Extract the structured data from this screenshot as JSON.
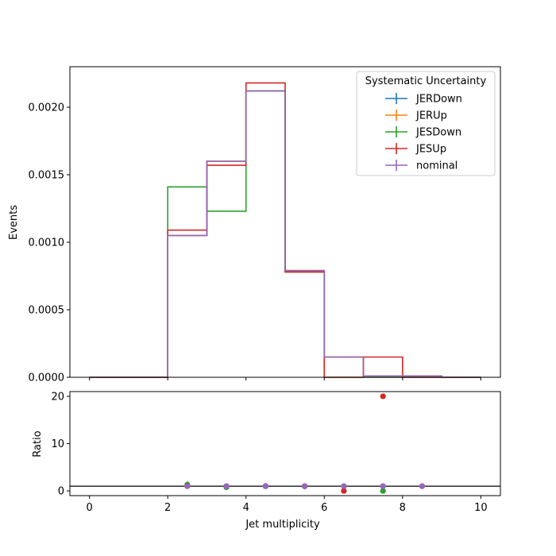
{
  "chart_data": [
    {
      "type": "line",
      "step": true,
      "panel": "main",
      "ylabel": "Events",
      "bin_edges": [
        0,
        1,
        2,
        3,
        4,
        5,
        6,
        7,
        8,
        9,
        10
      ],
      "xlim": [
        -0.5,
        10.5
      ],
      "ylim": [
        0,
        0.0023
      ],
      "yticks": [
        0,
        0.0005,
        0.001,
        0.0015,
        0.002
      ],
      "ytick_labels": [
        "0.0000",
        "0.0005",
        "0.0010",
        "0.0015",
        "0.0020"
      ],
      "legend": {
        "title": "Systematic Uncertainty",
        "placement": "top-right"
      },
      "series": [
        {
          "name": "JERDown",
          "color": "#1f77b4",
          "values": [
            0,
            0,
            0.00105,
            0.0016,
            0.00212,
            0.00079,
            0.00015,
            1e-05,
            1e-05,
            0
          ]
        },
        {
          "name": "JERUp",
          "color": "#ff7f0e",
          "values": [
            0,
            0,
            0.00105,
            0.0016,
            0.00212,
            0.00079,
            0.00015,
            1e-05,
            1e-05,
            0
          ]
        },
        {
          "name": "JESDown",
          "color": "#2ca02c",
          "values": [
            0,
            0,
            0.00141,
            0.00123,
            0.00212,
            0.00078,
            0.0,
            0.0,
            0.0,
            0
          ]
        },
        {
          "name": "JESUp",
          "color": "#d62728",
          "values": [
            0,
            0,
            0.00109,
            0.00157,
            0.00218,
            0.00078,
            0.0,
            0.00015,
            0.0,
            0
          ]
        },
        {
          "name": "nominal",
          "color": "#9467bd",
          "values": [
            0,
            0,
            0.00105,
            0.0016,
            0.00212,
            0.00079,
            0.00015,
            1e-05,
            1e-05,
            0
          ]
        }
      ]
    },
    {
      "type": "scatter",
      "panel": "ratio",
      "xlabel": "Jet multiplicity",
      "ylabel": "Ratio",
      "xlim": [
        -0.5,
        10.5
      ],
      "ylim": [
        -1,
        21
      ],
      "xticks": [
        0,
        2,
        4,
        6,
        8,
        10
      ],
      "xtick_labels": [
        "0",
        "2",
        "4",
        "6",
        "8",
        "10"
      ],
      "yticks": [
        0,
        10,
        20
      ],
      "ytick_labels": [
        "0",
        "10",
        "20"
      ],
      "reference_line": 1,
      "x": [
        2.5,
        3.5,
        4.5,
        5.5,
        6.5,
        7.5,
        8.5
      ],
      "series": [
        {
          "name": "JERDown",
          "color": "#1f77b4",
          "values": [
            1,
            1,
            1,
            1,
            1,
            1,
            1
          ]
        },
        {
          "name": "JERUp",
          "color": "#ff7f0e",
          "values": [
            1,
            1,
            1,
            1,
            1,
            1,
            1
          ]
        },
        {
          "name": "JESDown",
          "color": "#2ca02c",
          "values": [
            1.35,
            0.77,
            1.0,
            0.99,
            0,
            0,
            null
          ]
        },
        {
          "name": "JESUp",
          "color": "#d62728",
          "values": [
            1.04,
            0.98,
            1.03,
            0.99,
            0,
            20,
            null
          ]
        },
        {
          "name": "nominal",
          "color": "#9467bd",
          "values": [
            1,
            1,
            1,
            1,
            1,
            1,
            1
          ]
        }
      ]
    }
  ]
}
